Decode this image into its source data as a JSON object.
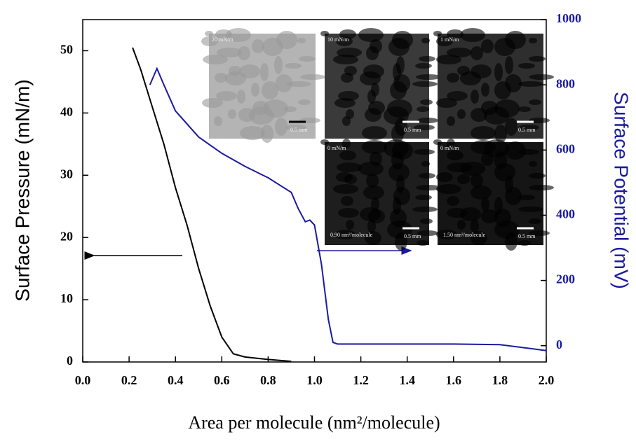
{
  "chart_data": {
    "type": "line",
    "x_label": "Area per molecule (nm²/molecule)",
    "y_label": "Surface Pressure (mN/m)",
    "y2_label": "Surface Potential (mV)",
    "xlim": [
      0,
      2
    ],
    "xticks": [
      {
        "value": 0,
        "label": "0.0"
      },
      0.2,
      0.4,
      0.6,
      0.8,
      {
        "value": 1,
        "label": "1.0"
      },
      1.2,
      1.4,
      1.6,
      1.8,
      {
        "value": 2,
        "label": "2.0"
      }
    ],
    "ylim": [
      0,
      55
    ],
    "yticks": [
      0,
      10,
      20,
      30,
      40,
      50
    ],
    "y2lim": [
      -50,
      1000
    ],
    "y2ticks": [
      0,
      200,
      400,
      600,
      800,
      1000
    ],
    "y2_color": "#1a1aa0",
    "series": [
      {
        "color": "#000000",
        "axis": "y",
        "x": [
          0.215,
          0.25,
          0.3,
          0.35,
          0.4,
          0.45,
          0.5,
          0.55,
          0.6,
          0.65,
          0.7,
          0.8,
          0.9
        ],
        "values": [
          50.5,
          47,
          41,
          35,
          28,
          22,
          15,
          9,
          4,
          1.3,
          0.8,
          0.4,
          0.1
        ]
      },
      {
        "color": "#1a1aa0",
        "axis": "y2",
        "x": [
          0.29,
          0.32,
          0.35,
          0.4,
          0.5,
          0.6,
          0.7,
          0.8,
          0.9,
          0.93,
          0.96,
          0.98,
          1.0,
          1.03,
          1.06,
          1.08,
          1.1,
          1.3,
          1.6,
          1.8,
          2.0
        ],
        "values": [
          800,
          850,
          800,
          720,
          640,
          590,
          550,
          515,
          470,
          420,
          380,
          385,
          370,
          250,
          80,
          10,
          5,
          5,
          5,
          3,
          -15
        ]
      }
    ],
    "insets": [
      {
        "pressure": "20 mN/m",
        "scale": "0.5 mm"
      },
      {
        "pressure": "10 mN/m",
        "scale": "0.5 mm"
      },
      {
        "pressure": "1 mN/m",
        "scale": "0.5 mm"
      },
      {
        "pressure": "0 mN/m",
        "area": "0.90 nm²/molecule",
        "scale": "0.5 mm"
      },
      {
        "pressure": "0 mN/m",
        "area": "1.50 nm²/molecule",
        "scale": "0.5 mm"
      }
    ]
  }
}
